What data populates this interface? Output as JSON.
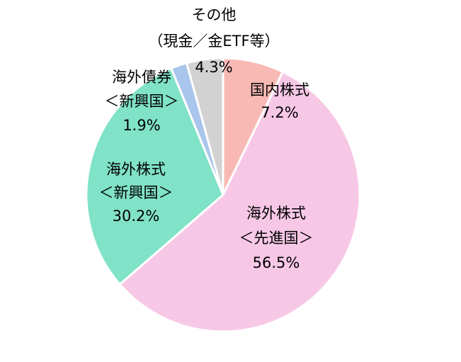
{
  "chart_data": {
    "type": "pie",
    "categories": [
      [
        "国内株式"
      ],
      [
        "海外株式",
        "＜先進国＞"
      ],
      [
        "海外株式",
        "＜新興国＞"
      ],
      [
        "海外債券",
        "＜新興国＞"
      ],
      [
        "その他",
        "（現金／金ETF等）"
      ]
    ],
    "values": [
      7.2,
      56.5,
      30.2,
      1.9,
      4.3
    ],
    "value_labels": [
      "7.2%",
      "56.5%",
      "30.2%",
      "1.9%",
      "4.3%"
    ],
    "colors": [
      "#f8b9b5",
      "#f7c8e6",
      "#80e2c6",
      "#a9c5ec",
      "#d2d2d2"
    ]
  }
}
